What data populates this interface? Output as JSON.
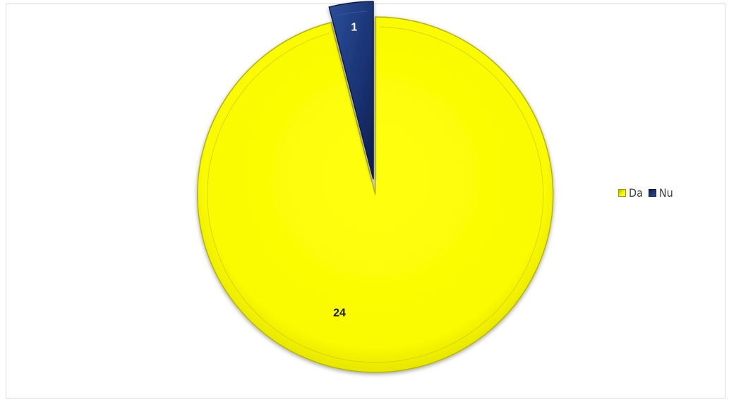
{
  "chart_data": {
    "type": "pie",
    "title": "",
    "categories": [
      "Da",
      "Nu"
    ],
    "values": [
      24,
      1
    ],
    "colors": [
      "#ffff00",
      "#1f3a7a"
    ],
    "data_labels": [
      "24",
      "1"
    ],
    "legend": {
      "position": "right",
      "entries": [
        {
          "label": "Da",
          "color": "#ffff00"
        },
        {
          "label": "Nu",
          "color": "#1f3a7a"
        }
      ]
    },
    "exploded_slice": "Nu",
    "grid": false
  }
}
